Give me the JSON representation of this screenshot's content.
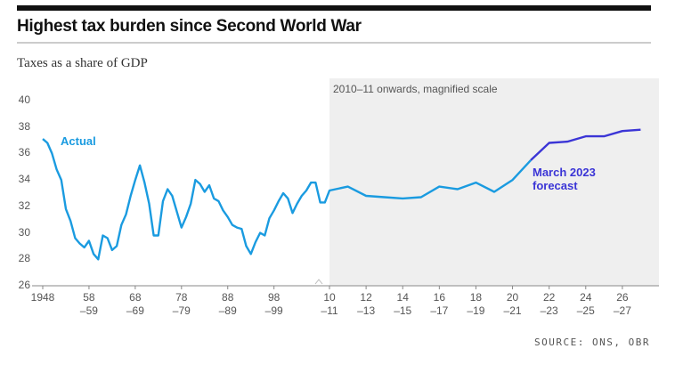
{
  "chart_data": {
    "type": "line",
    "title": "Highest tax burden since Second World War",
    "subtitle": "Taxes as a share of GDP",
    "annotation": "2010–11 onwards, magnified scale",
    "source": "SOURCE: ONS, OBR",
    "magnified_from": 2010,
    "x": [
      1948,
      1949,
      1950,
      1951,
      1952,
      1953,
      1954,
      1955,
      1956,
      1957,
      1958,
      1959,
      1960,
      1961,
      1962,
      1963,
      1964,
      1965,
      1966,
      1967,
      1968,
      1969,
      1970,
      1971,
      1972,
      1973,
      1974,
      1975,
      1976,
      1977,
      1978,
      1979,
      1980,
      1981,
      1982,
      1983,
      1984,
      1985,
      1986,
      1987,
      1988,
      1989,
      1990,
      1991,
      1992,
      1993,
      1994,
      1995,
      1996,
      1997,
      1998,
      1999,
      2000,
      2001,
      2002,
      2003,
      2004,
      2005,
      2006,
      2007,
      2008,
      2009,
      2010,
      2011,
      2012,
      2013,
      2014,
      2015,
      2016,
      2017,
      2018,
      2019,
      2020,
      2021,
      2022,
      2023,
      2024,
      2025,
      2026,
      2027
    ],
    "series": [
      {
        "name": "Actual",
        "color": "#1a9be0",
        "values": [
          37.1,
          36.8,
          36.0,
          34.8,
          34.0,
          31.8,
          30.9,
          29.6,
          29.2,
          28.9,
          29.4,
          28.4,
          28.0,
          29.8,
          29.6,
          28.7,
          29.0,
          30.6,
          31.4,
          32.8,
          34.0,
          35.1,
          33.8,
          32.2,
          29.8,
          29.8,
          32.4,
          33.3,
          32.8,
          31.6,
          30.4,
          31.2,
          32.2,
          34.0,
          33.7,
          33.1,
          33.6,
          32.6,
          32.4,
          31.7,
          31.2,
          30.6,
          30.4,
          30.3,
          29.0,
          28.4,
          29.3,
          30.0,
          29.8,
          31.1,
          31.7,
          32.4,
          33.0,
          32.6,
          31.5,
          32.2,
          32.8,
          33.2,
          33.8,
          33.8,
          32.3,
          32.3,
          33.2,
          33.5,
          32.8,
          32.7,
          32.6,
          32.7,
          33.5,
          33.3,
          33.8,
          33.1,
          34.0,
          35.5,
          null,
          null,
          null,
          null,
          null,
          null
        ]
      },
      {
        "name": "March 2023 forecast",
        "color": "#3b35d6",
        "values": [
          null,
          null,
          null,
          null,
          null,
          null,
          null,
          null,
          null,
          null,
          null,
          null,
          null,
          null,
          null,
          null,
          null,
          null,
          null,
          null,
          null,
          null,
          null,
          null,
          null,
          null,
          null,
          null,
          null,
          null,
          null,
          null,
          null,
          null,
          null,
          null,
          null,
          null,
          null,
          null,
          null,
          null,
          null,
          null,
          null,
          null,
          null,
          null,
          null,
          null,
          null,
          null,
          null,
          null,
          null,
          null,
          null,
          null,
          null,
          null,
          null,
          null,
          null,
          null,
          null,
          null,
          null,
          null,
          null,
          null,
          null,
          null,
          null,
          35.5,
          36.8,
          36.9,
          37.3,
          37.3,
          37.7,
          37.8
        ]
      }
    ],
    "xlim": [
      1948,
      2028
    ],
    "xticks": [
      1948,
      {
        "value": 1958,
        "label": "58\n–59"
      },
      {
        "value": 1968,
        "label": "68\n–69"
      },
      {
        "value": 1978,
        "label": "78\n–79"
      },
      {
        "value": 1988,
        "label": "88\n–89"
      },
      {
        "value": 1998,
        "label": "98\n–99"
      },
      {
        "value": 2010,
        "label": "10\n–11"
      },
      {
        "value": 2012,
        "label": "12\n–13"
      },
      {
        "value": 2014,
        "label": "14\n–15"
      },
      {
        "value": 2016,
        "label": "16\n–17"
      },
      {
        "value": 2018,
        "label": "18\n–19"
      },
      {
        "value": 2020,
        "label": "20\n–21"
      },
      {
        "value": 2022,
        "label": "22\n–23"
      },
      {
        "value": 2024,
        "label": "24\n–25"
      },
      {
        "value": 2026,
        "label": "26\n–27"
      }
    ],
    "ylim": [
      26,
      40
    ],
    "yticks": [
      26,
      28,
      30,
      32,
      34,
      36,
      38,
      40
    ],
    "grid": false
  }
}
